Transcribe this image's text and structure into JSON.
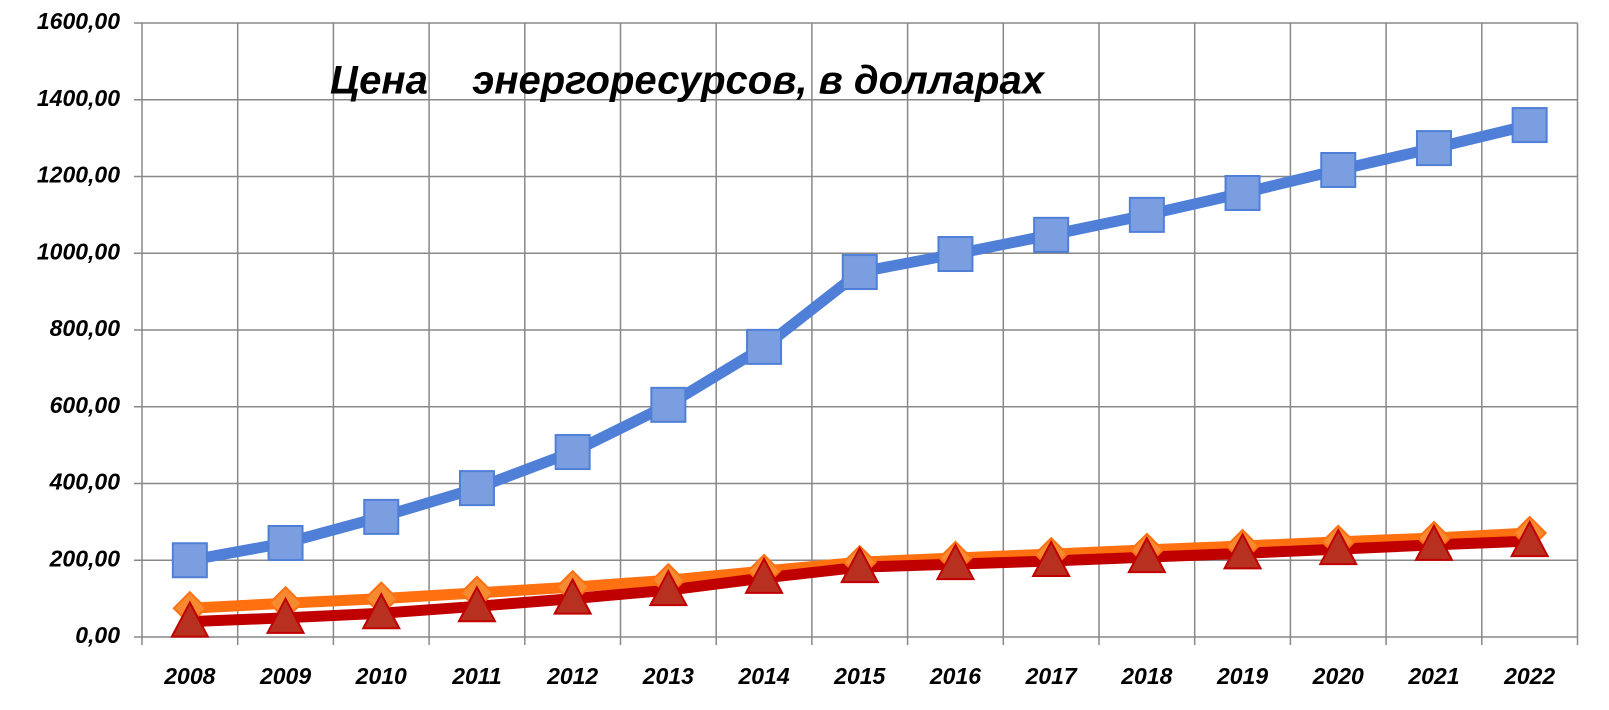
{
  "chart_data": {
    "type": "line",
    "title": "Цена    энергоресурсов, в долларах",
    "categories": [
      "2008",
      "2009",
      "2010",
      "2011",
      "2012",
      "2013",
      "2014",
      "2015",
      "2016",
      "2017",
      "2018",
      "2019",
      "2020",
      "2021",
      "2022"
    ],
    "series": [
      {
        "color": "#4f7fd6",
        "marker": "square",
        "marker_color": "#7b9ee0",
        "values": [
          200,
          245,
          313,
          388,
          482,
          605,
          756,
          951,
          998,
          1048,
          1100,
          1157,
          1217,
          1274,
          1334
        ]
      },
      {
        "color": "#ff7010",
        "marker": "diamond",
        "marker_color": "#f58a30",
        "values": [
          75,
          88,
          100,
          115,
          130,
          148,
          172,
          195,
          206,
          216,
          227,
          237,
          248,
          258,
          271
        ]
      },
      {
        "color": "#c00000",
        "marker": "triangle",
        "marker_color": "#b83020",
        "values": [
          40,
          50,
          62,
          80,
          100,
          122,
          154,
          182,
          190,
          198,
          208,
          218,
          229,
          240,
          250
        ]
      }
    ],
    "ylim": [
      0,
      1600
    ],
    "yticks": [
      {
        "value": 0,
        "label": "0,00"
      },
      {
        "value": 200,
        "label": "200,00"
      },
      {
        "value": 400,
        "label": "400,00"
      },
      {
        "value": 600,
        "label": "600,00"
      },
      {
        "value": 800,
        "label": "800,00"
      },
      {
        "value": 1000,
        "label": "1000,00"
      },
      {
        "value": 1200,
        "label": "1200,00"
      },
      {
        "value": 1400,
        "label": "1400,00"
      },
      {
        "value": 1600,
        "label": "1600,00"
      }
    ],
    "grid": true
  }
}
